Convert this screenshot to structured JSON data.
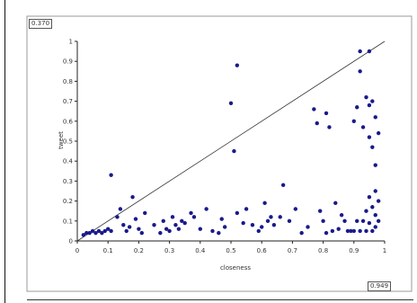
{
  "chart_data": {
    "type": "scatter",
    "title": "",
    "xlabel": "closeness",
    "ylabel": "tweet",
    "xlim": [
      0,
      1
    ],
    "ylim": [
      0,
      1
    ],
    "x_ticks": [
      "0",
      "0.1",
      "0.2",
      "0.3",
      "0.4",
      "0.5",
      "0.6",
      "0.7",
      "0.8",
      "0.9",
      "1"
    ],
    "y_ticks": [
      "0",
      "0.1",
      "0.2",
      "0.3",
      "0.4",
      "0.5",
      "0.6",
      "0.7",
      "0.8",
      "0.9",
      "1"
    ],
    "grid": false,
    "reference_line": {
      "from": [
        0,
        0
      ],
      "to": [
        1,
        1
      ]
    },
    "point_color": "#1a1a8c",
    "line_color": "#333333",
    "readout_y": "0.370",
    "readout_x": "0.949",
    "points": [
      [
        0.02,
        0.03
      ],
      [
        0.03,
        0.04
      ],
      [
        0.04,
        0.04
      ],
      [
        0.05,
        0.05
      ],
      [
        0.06,
        0.04
      ],
      [
        0.07,
        0.05
      ],
      [
        0.08,
        0.04
      ],
      [
        0.09,
        0.05
      ],
      [
        0.1,
        0.06
      ],
      [
        0.11,
        0.05
      ],
      [
        0.11,
        0.33
      ],
      [
        0.13,
        0.12
      ],
      [
        0.14,
        0.16
      ],
      [
        0.15,
        0.08
      ],
      [
        0.16,
        0.05
      ],
      [
        0.17,
        0.07
      ],
      [
        0.18,
        0.22
      ],
      [
        0.19,
        0.11
      ],
      [
        0.2,
        0.06
      ],
      [
        0.21,
        0.04
      ],
      [
        0.22,
        0.14
      ],
      [
        0.25,
        0.08
      ],
      [
        0.27,
        0.04
      ],
      [
        0.28,
        0.1
      ],
      [
        0.29,
        0.06
      ],
      [
        0.3,
        0.05
      ],
      [
        0.31,
        0.12
      ],
      [
        0.32,
        0.08
      ],
      [
        0.33,
        0.06
      ],
      [
        0.34,
        0.1
      ],
      [
        0.35,
        0.09
      ],
      [
        0.37,
        0.14
      ],
      [
        0.38,
        0.12
      ],
      [
        0.4,
        0.06
      ],
      [
        0.42,
        0.16
      ],
      [
        0.44,
        0.05
      ],
      [
        0.46,
        0.04
      ],
      [
        0.47,
        0.11
      ],
      [
        0.48,
        0.07
      ],
      [
        0.5,
        0.69
      ],
      [
        0.51,
        0.45
      ],
      [
        0.52,
        0.88
      ],
      [
        0.52,
        0.14
      ],
      [
        0.54,
        0.09
      ],
      [
        0.55,
        0.16
      ],
      [
        0.57,
        0.08
      ],
      [
        0.59,
        0.05
      ],
      [
        0.6,
        0.07
      ],
      [
        0.61,
        0.19
      ],
      [
        0.62,
        0.1
      ],
      [
        0.63,
        0.12
      ],
      [
        0.64,
        0.08
      ],
      [
        0.66,
        0.12
      ],
      [
        0.67,
        0.28
      ],
      [
        0.69,
        0.1
      ],
      [
        0.71,
        0.16
      ],
      [
        0.73,
        0.04
      ],
      [
        0.75,
        0.07
      ],
      [
        0.77,
        0.66
      ],
      [
        0.78,
        0.59
      ],
      [
        0.79,
        0.15
      ],
      [
        0.8,
        0.1
      ],
      [
        0.81,
        0.64
      ],
      [
        0.81,
        0.04
      ],
      [
        0.82,
        0.57
      ],
      [
        0.83,
        0.05
      ],
      [
        0.84,
        0.19
      ],
      [
        0.85,
        0.06
      ],
      [
        0.86,
        0.13
      ],
      [
        0.87,
        0.1
      ],
      [
        0.88,
        0.05
      ],
      [
        0.89,
        0.05
      ],
      [
        0.9,
        0.6
      ],
      [
        0.9,
        0.05
      ],
      [
        0.91,
        0.67
      ],
      [
        0.91,
        0.1
      ],
      [
        0.92,
        0.95
      ],
      [
        0.92,
        0.85
      ],
      [
        0.92,
        0.05
      ],
      [
        0.93,
        0.57
      ],
      [
        0.93,
        0.1
      ],
      [
        0.94,
        0.72
      ],
      [
        0.94,
        0.15
      ],
      [
        0.94,
        0.05
      ],
      [
        0.95,
        0.95
      ],
      [
        0.95,
        0.68
      ],
      [
        0.95,
        0.52
      ],
      [
        0.95,
        0.22
      ],
      [
        0.95,
        0.09
      ],
      [
        0.96,
        0.7
      ],
      [
        0.96,
        0.47
      ],
      [
        0.96,
        0.17
      ],
      [
        0.96,
        0.05
      ],
      [
        0.97,
        0.62
      ],
      [
        0.97,
        0.38
      ],
      [
        0.97,
        0.25
      ],
      [
        0.97,
        0.13
      ],
      [
        0.97,
        0.07
      ],
      [
        0.98,
        0.54
      ],
      [
        0.98,
        0.2
      ],
      [
        0.98,
        0.1
      ]
    ]
  }
}
